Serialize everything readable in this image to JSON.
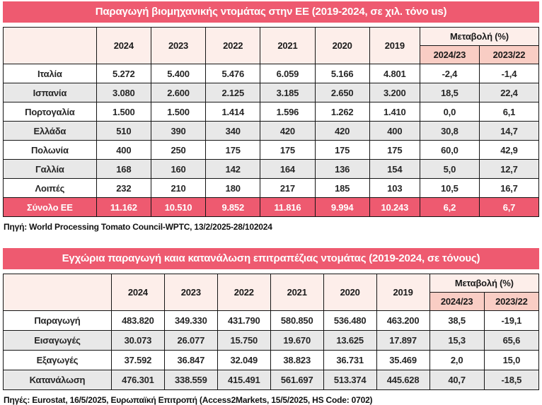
{
  "colors": {
    "title_bg": "#ee5a70",
    "header_bg": "#fdeeea",
    "subheader_bg": "#f9cdc4",
    "alt_row_bg": "#e8e8e8",
    "total_bg": "#ee5a70",
    "border": "#151515"
  },
  "table1": {
    "title": "Παραγωγή βιομηχανικής ντομάτας στην ΕΕ (2019-2024, σε χιλ. τόνο us)",
    "years": [
      "2024",
      "2023",
      "2022",
      "2021",
      "2020",
      "2019"
    ],
    "change_header": "Μεταβολή (%)",
    "change_cols": [
      "2024/23",
      "2023/22"
    ],
    "rows": [
      {
        "label": "Ιταλία",
        "values": [
          "5.272",
          "5.400",
          "5.476",
          "6.059",
          "5.166",
          "4.801",
          "-2,4",
          "-1,4"
        ]
      },
      {
        "label": "Ισπανία",
        "values": [
          "3.080",
          "2.600",
          "2.125",
          "3.185",
          "2.650",
          "3.200",
          "18,5",
          "22,4"
        ]
      },
      {
        "label": "Πορτογαλία",
        "values": [
          "1.500",
          "1.500",
          "1.414",
          "1.596",
          "1.262",
          "1.410",
          "0,0",
          "6,1"
        ]
      },
      {
        "label": "Ελλάδα",
        "values": [
          "510",
          "390",
          "340",
          "420",
          "420",
          "400",
          "30,8",
          "14,7"
        ]
      },
      {
        "label": "Πολωνία",
        "values": [
          "400",
          "250",
          "175",
          "175",
          "175",
          "175",
          "60,0",
          "42,9"
        ]
      },
      {
        "label": "Γαλλία",
        "values": [
          "168",
          "160",
          "142",
          "164",
          "136",
          "154",
          "5,0",
          "12,7"
        ]
      },
      {
        "label": "Λοιπές",
        "values": [
          "232",
          "210",
          "180",
          "217",
          "185",
          "103",
          "10,5",
          "16,7"
        ]
      }
    ],
    "total": {
      "label": "Σύνολο ΕΕ",
      "values": [
        "11.162",
        "10.510",
        "9.852",
        "11.816",
        "9.994",
        "10.243",
        "6,2",
        "6,7"
      ]
    },
    "source": "Πηγή: World Processing Tomato Council-WPTC, 13/2/2025-28/102024"
  },
  "table2": {
    "title": "Εγχώρια παραγωγή καια κατανάλωση επιτραπέζιας ντομάτας (2019-2024, σε τόνους)",
    "years": [
      "2024",
      "2023",
      "2022",
      "2021",
      "2020",
      "2019"
    ],
    "change_header": "Μεταβολή (%)",
    "change_cols": [
      "2024/23",
      "2023/22"
    ],
    "rows": [
      {
        "label": "Παραγωγή",
        "values": [
          "483.820",
          "349.330",
          "431.790",
          "580.850",
          "536.480",
          "463.200",
          "38,5",
          "-19,1"
        ]
      },
      {
        "label": "Εισαγωγές",
        "values": [
          "30.073",
          "26.077",
          "15.750",
          "19.670",
          "13.625",
          "17.897",
          "15,3",
          "65,6"
        ]
      },
      {
        "label": "Εξαγωγές",
        "values": [
          "37.592",
          "36.847",
          "32.049",
          "38.823",
          "36.731",
          "35.469",
          "2,0",
          "15,0"
        ]
      },
      {
        "label": "Κατανάλωση",
        "values": [
          "476.301",
          "338.559",
          "415.491",
          "561.697",
          "513.374",
          "445.628",
          "40,7",
          "-18,5"
        ]
      }
    ],
    "source": "Πηγές: Eurostat, 16/5/2025, Ευρωπαϊκή Επιτροπή (Access2Markets, 15/5/2025, HS Code: 0702)"
  }
}
